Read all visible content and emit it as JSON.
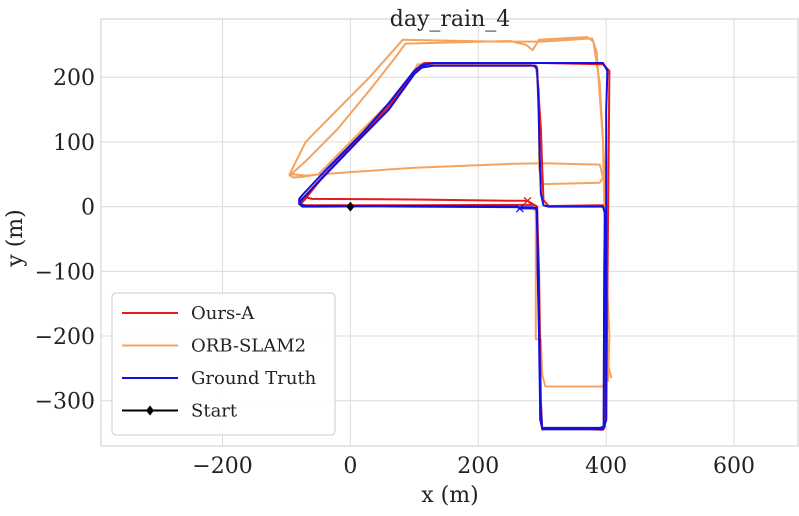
{
  "chart_data": {
    "type": "line",
    "title": "day_rain_4",
    "xlabel": "x (m)",
    "ylabel": "y (m)",
    "xlim": [
      -390,
      700
    ],
    "ylim": [
      -370,
      290
    ],
    "xticks": [
      -200,
      0,
      200,
      400,
      600
    ],
    "yticks": [
      200,
      100,
      0,
      -100,
      -200,
      -300
    ],
    "xtick_labels": [
      "−200",
      "0",
      "200",
      "400",
      "600"
    ],
    "ytick_labels": [
      "200",
      "100",
      "0",
      "−100",
      "−200",
      "−300"
    ],
    "grid": true,
    "legend_position": "lower-left",
    "series": [
      {
        "name": "Ours-A",
        "color": "#e41a1c",
        "marker": "none",
        "points": [
          [
            277,
            9
          ],
          [
            260,
            9
          ],
          [
            100,
            11
          ],
          [
            -60,
            12
          ],
          [
            -72,
            15
          ],
          [
            -78,
            10
          ],
          [
            -78,
            4
          ],
          [
            -72,
            10
          ],
          [
            -40,
            50
          ],
          [
            20,
            110
          ],
          [
            60,
            150
          ],
          [
            100,
            205
          ],
          [
            110,
            215
          ],
          [
            130,
            218
          ],
          [
            290,
            218
          ],
          [
            292,
            215
          ],
          [
            293,
            195
          ],
          [
            298,
            120
          ],
          [
            300,
            60
          ],
          [
            302,
            10
          ],
          [
            310,
            1
          ],
          [
            395,
            2
          ],
          [
            398,
            -10
          ],
          [
            398,
            -340
          ],
          [
            395,
            -345
          ],
          [
            300,
            -342
          ],
          [
            297,
            -330
          ],
          [
            296,
            -200
          ],
          [
            293,
            -100
          ],
          [
            292,
            0
          ],
          [
            285,
            3
          ],
          [
            100,
            2
          ],
          [
            -72,
            2
          ],
          [
            -78,
            4
          ],
          [
            -72,
            15
          ],
          [
            -40,
            50
          ],
          [
            20,
            112
          ],
          [
            60,
            155
          ],
          [
            100,
            208
          ],
          [
            115,
            222
          ],
          [
            300,
            222
          ],
          [
            395,
            220
          ],
          [
            405,
            210
          ],
          [
            400,
            -330
          ],
          [
            395,
            -344
          ],
          [
            300,
            -344
          ],
          [
            298,
            -300
          ],
          [
            295,
            -100
          ],
          [
            292,
            0
          ],
          [
            277,
            9
          ]
        ],
        "end_marker": [
          277,
          9
        ]
      },
      {
        "name": "ORB-SLAM2",
        "color": "#f4a460",
        "marker": "none",
        "points": [
          [
            270,
            -2
          ],
          [
            290,
            -5
          ],
          [
            290,
            -205
          ],
          [
            298,
            -205
          ],
          [
            300,
            -260
          ],
          [
            305,
            -278
          ],
          [
            395,
            -278
          ],
          [
            398,
            -270
          ],
          [
            403,
            -270
          ],
          [
            405,
            -200
          ],
          [
            398,
            -50
          ],
          [
            395,
            100
          ],
          [
            385,
            240
          ],
          [
            378,
            260
          ],
          [
            300,
            255
          ],
          [
            230,
            255
          ],
          [
            82,
            258
          ],
          [
            30,
            200
          ],
          [
            -30,
            140
          ],
          [
            -70,
            100
          ],
          [
            -95,
            50
          ],
          [
            -90,
            45
          ],
          [
            -75,
            46
          ],
          [
            -50,
            50
          ],
          [
            -30,
            70
          ],
          [
            20,
            120
          ],
          [
            60,
            160
          ],
          [
            100,
            210
          ],
          [
            105,
            220
          ],
          [
            280,
            220
          ],
          [
            290,
            215
          ],
          [
            295,
            180
          ],
          [
            295,
            60
          ],
          [
            300,
            35
          ],
          [
            310,
            35
          ],
          [
            390,
            37
          ],
          [
            395,
            45
          ],
          [
            390,
            65
          ],
          [
            300,
            67
          ],
          [
            250,
            66
          ],
          [
            100,
            60
          ],
          [
            -20,
            52
          ],
          [
            -70,
            48
          ],
          [
            -90,
            50
          ],
          [
            -95,
            48
          ],
          [
            -70,
            70
          ],
          [
            -20,
            120
          ],
          [
            30,
            180
          ],
          [
            70,
            230
          ],
          [
            86,
            252
          ],
          [
            250,
            256
          ],
          [
            275,
            250
          ],
          [
            285,
            242
          ],
          [
            295,
            258
          ],
          [
            330,
            260
          ],
          [
            370,
            262
          ],
          [
            380,
            255
          ],
          [
            390,
            190
          ],
          [
            395,
            100
          ],
          [
            398,
            50
          ],
          [
            400,
            -100
          ],
          [
            402,
            -240
          ],
          [
            408,
            -265
          ]
        ]
      },
      {
        "name": "Ground Truth",
        "color": "#1010e0",
        "marker": "none",
        "points": [
          [
            265,
            -3
          ],
          [
            260,
            0
          ],
          [
            100,
            1
          ],
          [
            -60,
            0
          ],
          [
            -75,
            0
          ],
          [
            -80,
            4
          ],
          [
            -75,
            12
          ],
          [
            -40,
            48
          ],
          [
            20,
            110
          ],
          [
            60,
            150
          ],
          [
            100,
            205
          ],
          [
            112,
            215
          ],
          [
            130,
            218
          ],
          [
            288,
            218
          ],
          [
            292,
            212
          ],
          [
            294,
            160
          ],
          [
            296,
            80
          ],
          [
            298,
            20
          ],
          [
            302,
            2
          ],
          [
            310,
            0
          ],
          [
            395,
            0
          ],
          [
            398,
            -10
          ],
          [
            397,
            -100
          ],
          [
            396,
            -340
          ],
          [
            390,
            -342
          ],
          [
            300,
            -342
          ],
          [
            297,
            -330
          ],
          [
            295,
            -200
          ],
          [
            293,
            -100
          ],
          [
            292,
            -5
          ],
          [
            285,
            -1
          ],
          [
            100,
            0
          ],
          [
            -70,
            1
          ],
          [
            -80,
            5
          ],
          [
            -80,
            12
          ],
          [
            -75,
            18
          ],
          [
            -40,
            55
          ],
          [
            20,
            115
          ],
          [
            60,
            160
          ],
          [
            100,
            210
          ],
          [
            110,
            218
          ],
          [
            130,
            222
          ],
          [
            300,
            222
          ],
          [
            395,
            222
          ],
          [
            402,
            210
          ],
          [
            400,
            150
          ],
          [
            400,
            -330
          ],
          [
            395,
            -344
          ],
          [
            300,
            -344
          ],
          [
            297,
            -300
          ],
          [
            294,
            -100
          ],
          [
            291,
            -2
          ],
          [
            265,
            -3
          ]
        ],
        "end_marker": [
          265,
          -3
        ]
      }
    ],
    "start": {
      "name": "Start",
      "x": 0,
      "y": 0,
      "color": "#000000",
      "marker": "diamond"
    }
  }
}
